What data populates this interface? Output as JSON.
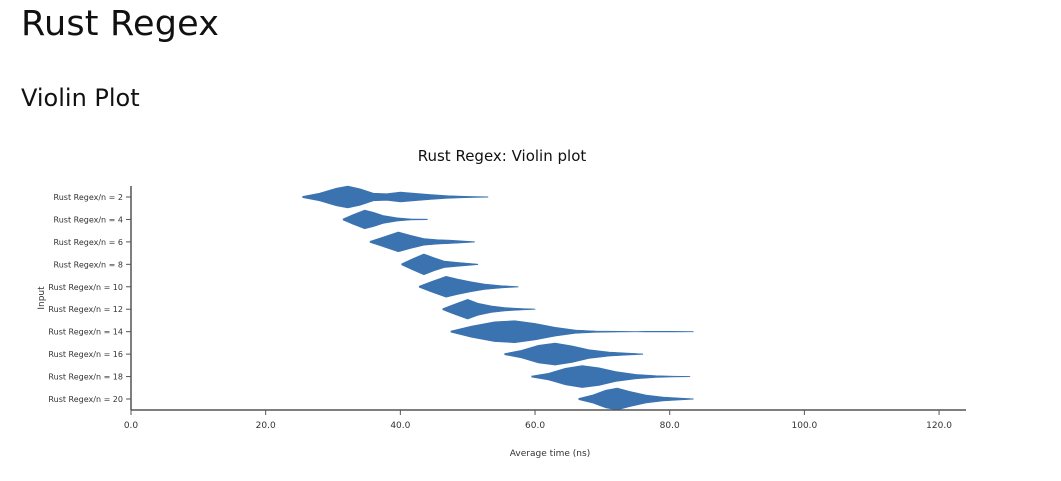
{
  "page": {
    "title": "Rust Regex",
    "section": "Violin Plot"
  },
  "chart_data": {
    "type": "violin",
    "title": "Rust Regex: Violin plot",
    "xlabel": "Average time (ns)",
    "ylabel": "Input",
    "xlim": [
      0,
      124
    ],
    "xticks": [
      "0.0",
      "20.0",
      "40.0",
      "60.0",
      "80.0",
      "100.0",
      "120.0"
    ],
    "xtick_values": [
      0,
      20,
      40,
      60,
      80,
      100,
      120
    ],
    "colors": {
      "fill": "#3a73b0",
      "axis": "#555555"
    },
    "series": [
      {
        "name": "Rust Regex/n = 2",
        "density": [
          [
            25.5,
            0.05
          ],
          [
            28,
            0.35
          ],
          [
            30.5,
            0.8
          ],
          [
            32.2,
            1.0
          ],
          [
            34,
            0.75
          ],
          [
            36,
            0.35
          ],
          [
            38,
            0.3
          ],
          [
            40,
            0.45
          ],
          [
            42,
            0.35
          ],
          [
            44.5,
            0.22
          ],
          [
            47,
            0.12
          ],
          [
            50,
            0.05
          ],
          [
            53,
            0.02
          ]
        ]
      },
      {
        "name": "Rust Regex/n = 4",
        "density": [
          [
            31.5,
            0.05
          ],
          [
            33,
            0.45
          ],
          [
            34.7,
            0.85
          ],
          [
            36,
            0.65
          ],
          [
            37.5,
            0.35
          ],
          [
            39.5,
            0.15
          ],
          [
            41.5,
            0.05
          ],
          [
            44,
            0.02
          ]
        ]
      },
      {
        "name": "Rust Regex/n = 6",
        "density": [
          [
            35.5,
            0.05
          ],
          [
            37.5,
            0.45
          ],
          [
            39.7,
            0.9
          ],
          [
            41.5,
            0.6
          ],
          [
            43.5,
            0.3
          ],
          [
            45.5,
            0.2
          ],
          [
            47.5,
            0.15
          ],
          [
            49.5,
            0.07
          ],
          [
            51,
            0.02
          ]
        ]
      },
      {
        "name": "Rust Regex/n = 8",
        "density": [
          [
            40.2,
            0.05
          ],
          [
            41.8,
            0.5
          ],
          [
            43.5,
            0.95
          ],
          [
            45,
            0.6
          ],
          [
            46.5,
            0.3
          ],
          [
            48.5,
            0.18
          ],
          [
            50.5,
            0.08
          ],
          [
            51.5,
            0.02
          ]
        ]
      },
      {
        "name": "Rust Regex/n = 10",
        "density": [
          [
            42.8,
            0.05
          ],
          [
            44.5,
            0.45
          ],
          [
            46.8,
            0.95
          ],
          [
            48.5,
            0.7
          ],
          [
            50.5,
            0.45
          ],
          [
            52.5,
            0.25
          ],
          [
            55,
            0.1
          ],
          [
            57.5,
            0.02
          ]
        ]
      },
      {
        "name": "Rust Regex/n = 12",
        "density": [
          [
            46.3,
            0.05
          ],
          [
            48,
            0.45
          ],
          [
            50,
            0.9
          ],
          [
            51.5,
            0.55
          ],
          [
            53.5,
            0.3
          ],
          [
            55.5,
            0.15
          ],
          [
            58,
            0.07
          ],
          [
            60,
            0.02
          ]
        ]
      },
      {
        "name": "Rust Regex/n = 14",
        "density": [
          [
            47.5,
            0.05
          ],
          [
            50.5,
            0.5
          ],
          [
            54,
            0.9
          ],
          [
            57,
            1.0
          ],
          [
            60,
            0.75
          ],
          [
            63,
            0.4
          ],
          [
            66,
            0.15
          ],
          [
            69,
            0.06
          ],
          [
            72.5,
            0.03
          ],
          [
            75,
            0.01
          ],
          [
            76.5,
            0.03
          ],
          [
            80,
            0.03
          ],
          [
            83.5,
            0.01
          ]
        ]
      },
      {
        "name": "Rust Regex/n = 16",
        "density": [
          [
            55.5,
            0.05
          ],
          [
            58,
            0.35
          ],
          [
            60.5,
            0.8
          ],
          [
            63,
            1.0
          ],
          [
            65.5,
            0.75
          ],
          [
            68,
            0.4
          ],
          [
            71,
            0.18
          ],
          [
            74,
            0.08
          ],
          [
            76,
            0.02
          ]
        ]
      },
      {
        "name": "Rust Regex/n = 18",
        "density": [
          [
            59.5,
            0.05
          ],
          [
            62,
            0.3
          ],
          [
            64.5,
            0.75
          ],
          [
            67,
            1.0
          ],
          [
            69.5,
            0.8
          ],
          [
            72,
            0.45
          ],
          [
            75,
            0.2
          ],
          [
            78,
            0.08
          ],
          [
            80.5,
            0.03
          ],
          [
            83,
            0.01
          ]
        ]
      },
      {
        "name": "Rust Regex/n = 20",
        "density": [
          [
            66.5,
            0.05
          ],
          [
            68.5,
            0.35
          ],
          [
            70.5,
            0.8
          ],
          [
            72.2,
            1.0
          ],
          [
            74,
            0.7
          ],
          [
            76.5,
            0.35
          ],
          [
            79,
            0.18
          ],
          [
            81.5,
            0.08
          ],
          [
            83.5,
            0.02
          ]
        ]
      }
    ]
  }
}
